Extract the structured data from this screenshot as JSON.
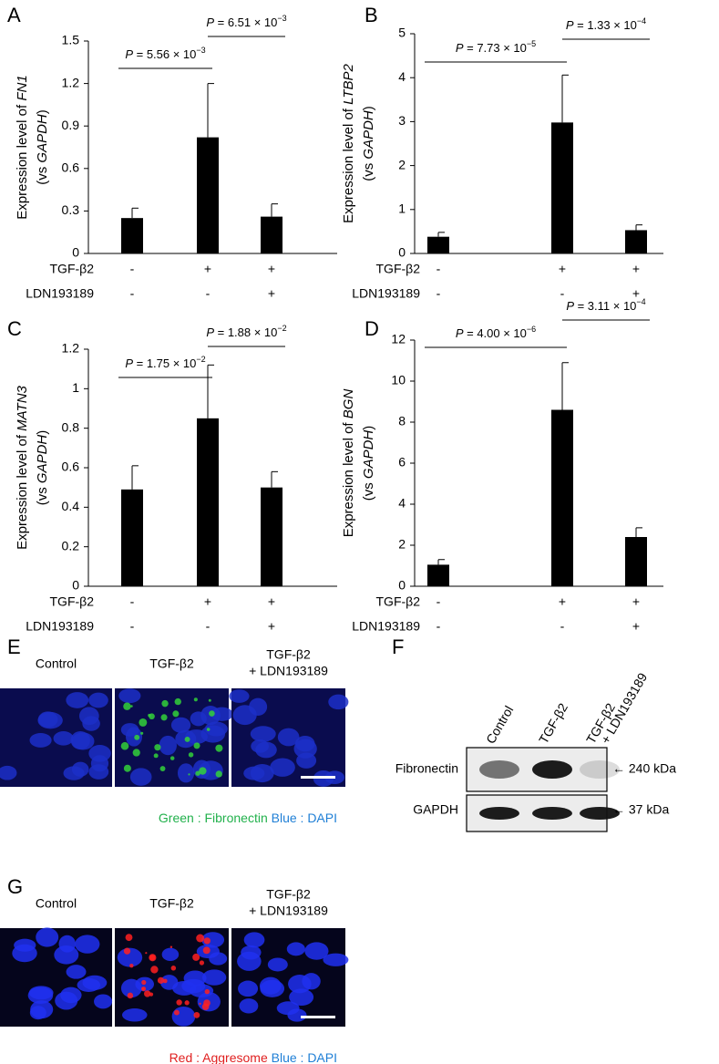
{
  "chart_data": [
    {
      "type": "bar",
      "panel": "A",
      "ylabel": [
        "Expression level of",
        "FN1",
        "(vs",
        "GAPDH",
        ")"
      ],
      "values": [
        0.25,
        0.82,
        0.26
      ],
      "errors": [
        0.07,
        0.38,
        0.09
      ],
      "color": "#000000",
      "ylim": [
        0,
        1.5
      ],
      "yticks": [
        0,
        0.3,
        0.6,
        0.9,
        1.2,
        1.5
      ],
      "annotations": [
        {
          "label": "P",
          "text": " = 5.56 × 10",
          "exponent": "−3"
        },
        {
          "label": "P",
          "text": " = 6.51 × 10",
          "exponent": "−3"
        }
      ],
      "conditions": [
        {
          "name": "TGF-β2",
          "values": [
            "-",
            "+",
            "+"
          ]
        },
        {
          "name": "LDN193189",
          "values": [
            "-",
            "-",
            "+"
          ]
        }
      ]
    },
    {
      "type": "bar",
      "panel": "B",
      "ylabel": [
        "Expression level of",
        "LTBP2",
        "(vs",
        "GAPDH",
        ")"
      ],
      "values": [
        0.38,
        2.98,
        0.53
      ],
      "errors": [
        0.1,
        1.08,
        0.12
      ],
      "color": "#000000",
      "ylim": [
        0,
        5
      ],
      "yticks": [
        0,
        1,
        2,
        3,
        4,
        5
      ],
      "annotations": [
        {
          "label": "P",
          "text": " = 7.73 × 10",
          "exponent": "−5"
        },
        {
          "label": "P",
          "text": " = 1.33 × 10",
          "exponent": "−4"
        }
      ],
      "conditions": [
        {
          "name": "TGF-β2",
          "values": [
            "-",
            "+",
            "+"
          ]
        },
        {
          "name": "LDN193189",
          "values": [
            "-",
            "-",
            "+"
          ]
        }
      ]
    },
    {
      "type": "bar",
      "panel": "C",
      "ylabel": [
        "Expression level of",
        "MATN3",
        "(vs",
        "GAPDH",
        ")"
      ],
      "values": [
        0.49,
        0.85,
        0.5
      ],
      "errors": [
        0.12,
        0.27,
        0.08
      ],
      "color": "#000000",
      "ylim": [
        0,
        1.2
      ],
      "yticks": [
        0,
        0.2,
        0.4,
        0.6,
        0.8,
        1,
        1.2
      ],
      "annotations": [
        {
          "label": "P",
          "text": " = 1.75 × 10",
          "exponent": "−2"
        },
        {
          "label": "P",
          "text": " = 1.88 × 10",
          "exponent": "−2"
        }
      ],
      "conditions": [
        {
          "name": "TGF-β2",
          "values": [
            "-",
            "+",
            "+"
          ]
        },
        {
          "name": "LDN193189",
          "values": [
            "-",
            "-",
            "+"
          ]
        }
      ]
    },
    {
      "type": "bar",
      "panel": "D",
      "ylabel": [
        "Expression level of",
        "BGN",
        "(vs",
        "GAPDH",
        ")"
      ],
      "values": [
        1.05,
        8.6,
        2.4
      ],
      "errors": [
        0.25,
        2.3,
        0.45
      ],
      "color": "#000000",
      "ylim": [
        0,
        12
      ],
      "yticks": [
        0,
        2,
        4,
        6,
        8,
        10,
        12
      ],
      "annotations": [
        {
          "label": "P",
          "text": " = 4.00 × 10",
          "exponent": "−6"
        },
        {
          "label": "P",
          "text": " = 3.11 × 10",
          "exponent": "−4"
        }
      ],
      "conditions": [
        {
          "name": "TGF-β2",
          "values": [
            "-",
            "+",
            "+"
          ]
        },
        {
          "name": "LDN193189",
          "values": [
            "-",
            "-",
            "+"
          ]
        }
      ]
    }
  ],
  "panel_e": {
    "panel": "E",
    "columns": [
      [
        "Control"
      ],
      [
        "TGF-β2"
      ],
      [
        "TGF-β2",
        "+ LDN193189"
      ]
    ],
    "caption": [
      {
        "text": "Green : Fibronectin",
        "color": "#22b14c"
      },
      {
        "text": "Blue : DAPI",
        "color": "#1f7fd6"
      }
    ]
  },
  "panel_f": {
    "panel": "F",
    "lanes": [
      [
        "Control"
      ],
      [
        "TGF-β2"
      ],
      [
        "TGF-β2",
        "+ LDN193189"
      ]
    ],
    "rows": [
      {
        "name": "Fibronectin",
        "size": "← 240 kDa"
      },
      {
        "name": "GAPDH",
        "size": "← 37 kDa"
      }
    ]
  },
  "panel_g": {
    "panel": "G",
    "columns": [
      [
        "Control"
      ],
      [
        "TGF-β2"
      ],
      [
        "TGF-β2",
        "+ LDN193189"
      ]
    ],
    "caption": [
      {
        "text": "Red : Aggresome",
        "color": "#e02020"
      },
      {
        "text": "Blue : DAPI",
        "color": "#1f7fd6"
      }
    ]
  }
}
